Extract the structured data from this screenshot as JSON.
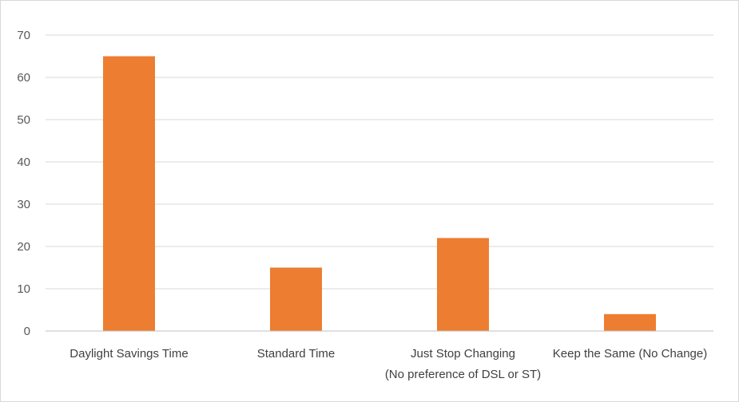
{
  "chart_data": {
    "type": "bar",
    "title": "",
    "xlabel": "",
    "ylabel": "",
    "categories": [
      [
        "Daylight Savings Time"
      ],
      [
        "Standard Time"
      ],
      [
        "Just Stop Changing",
        "(No preference of DSL or ST)"
      ],
      [
        "Keep the Same (No Change)"
      ]
    ],
    "values": [
      65,
      15,
      22,
      4
    ],
    "ylim": [
      0,
      70
    ],
    "yticks": [
      0,
      10,
      20,
      30,
      40,
      50,
      60,
      70
    ],
    "grid": true,
    "bar_color": "#ED7D31",
    "grid_color": "#d9d9d9",
    "axis_color": "#bfbfbf"
  }
}
